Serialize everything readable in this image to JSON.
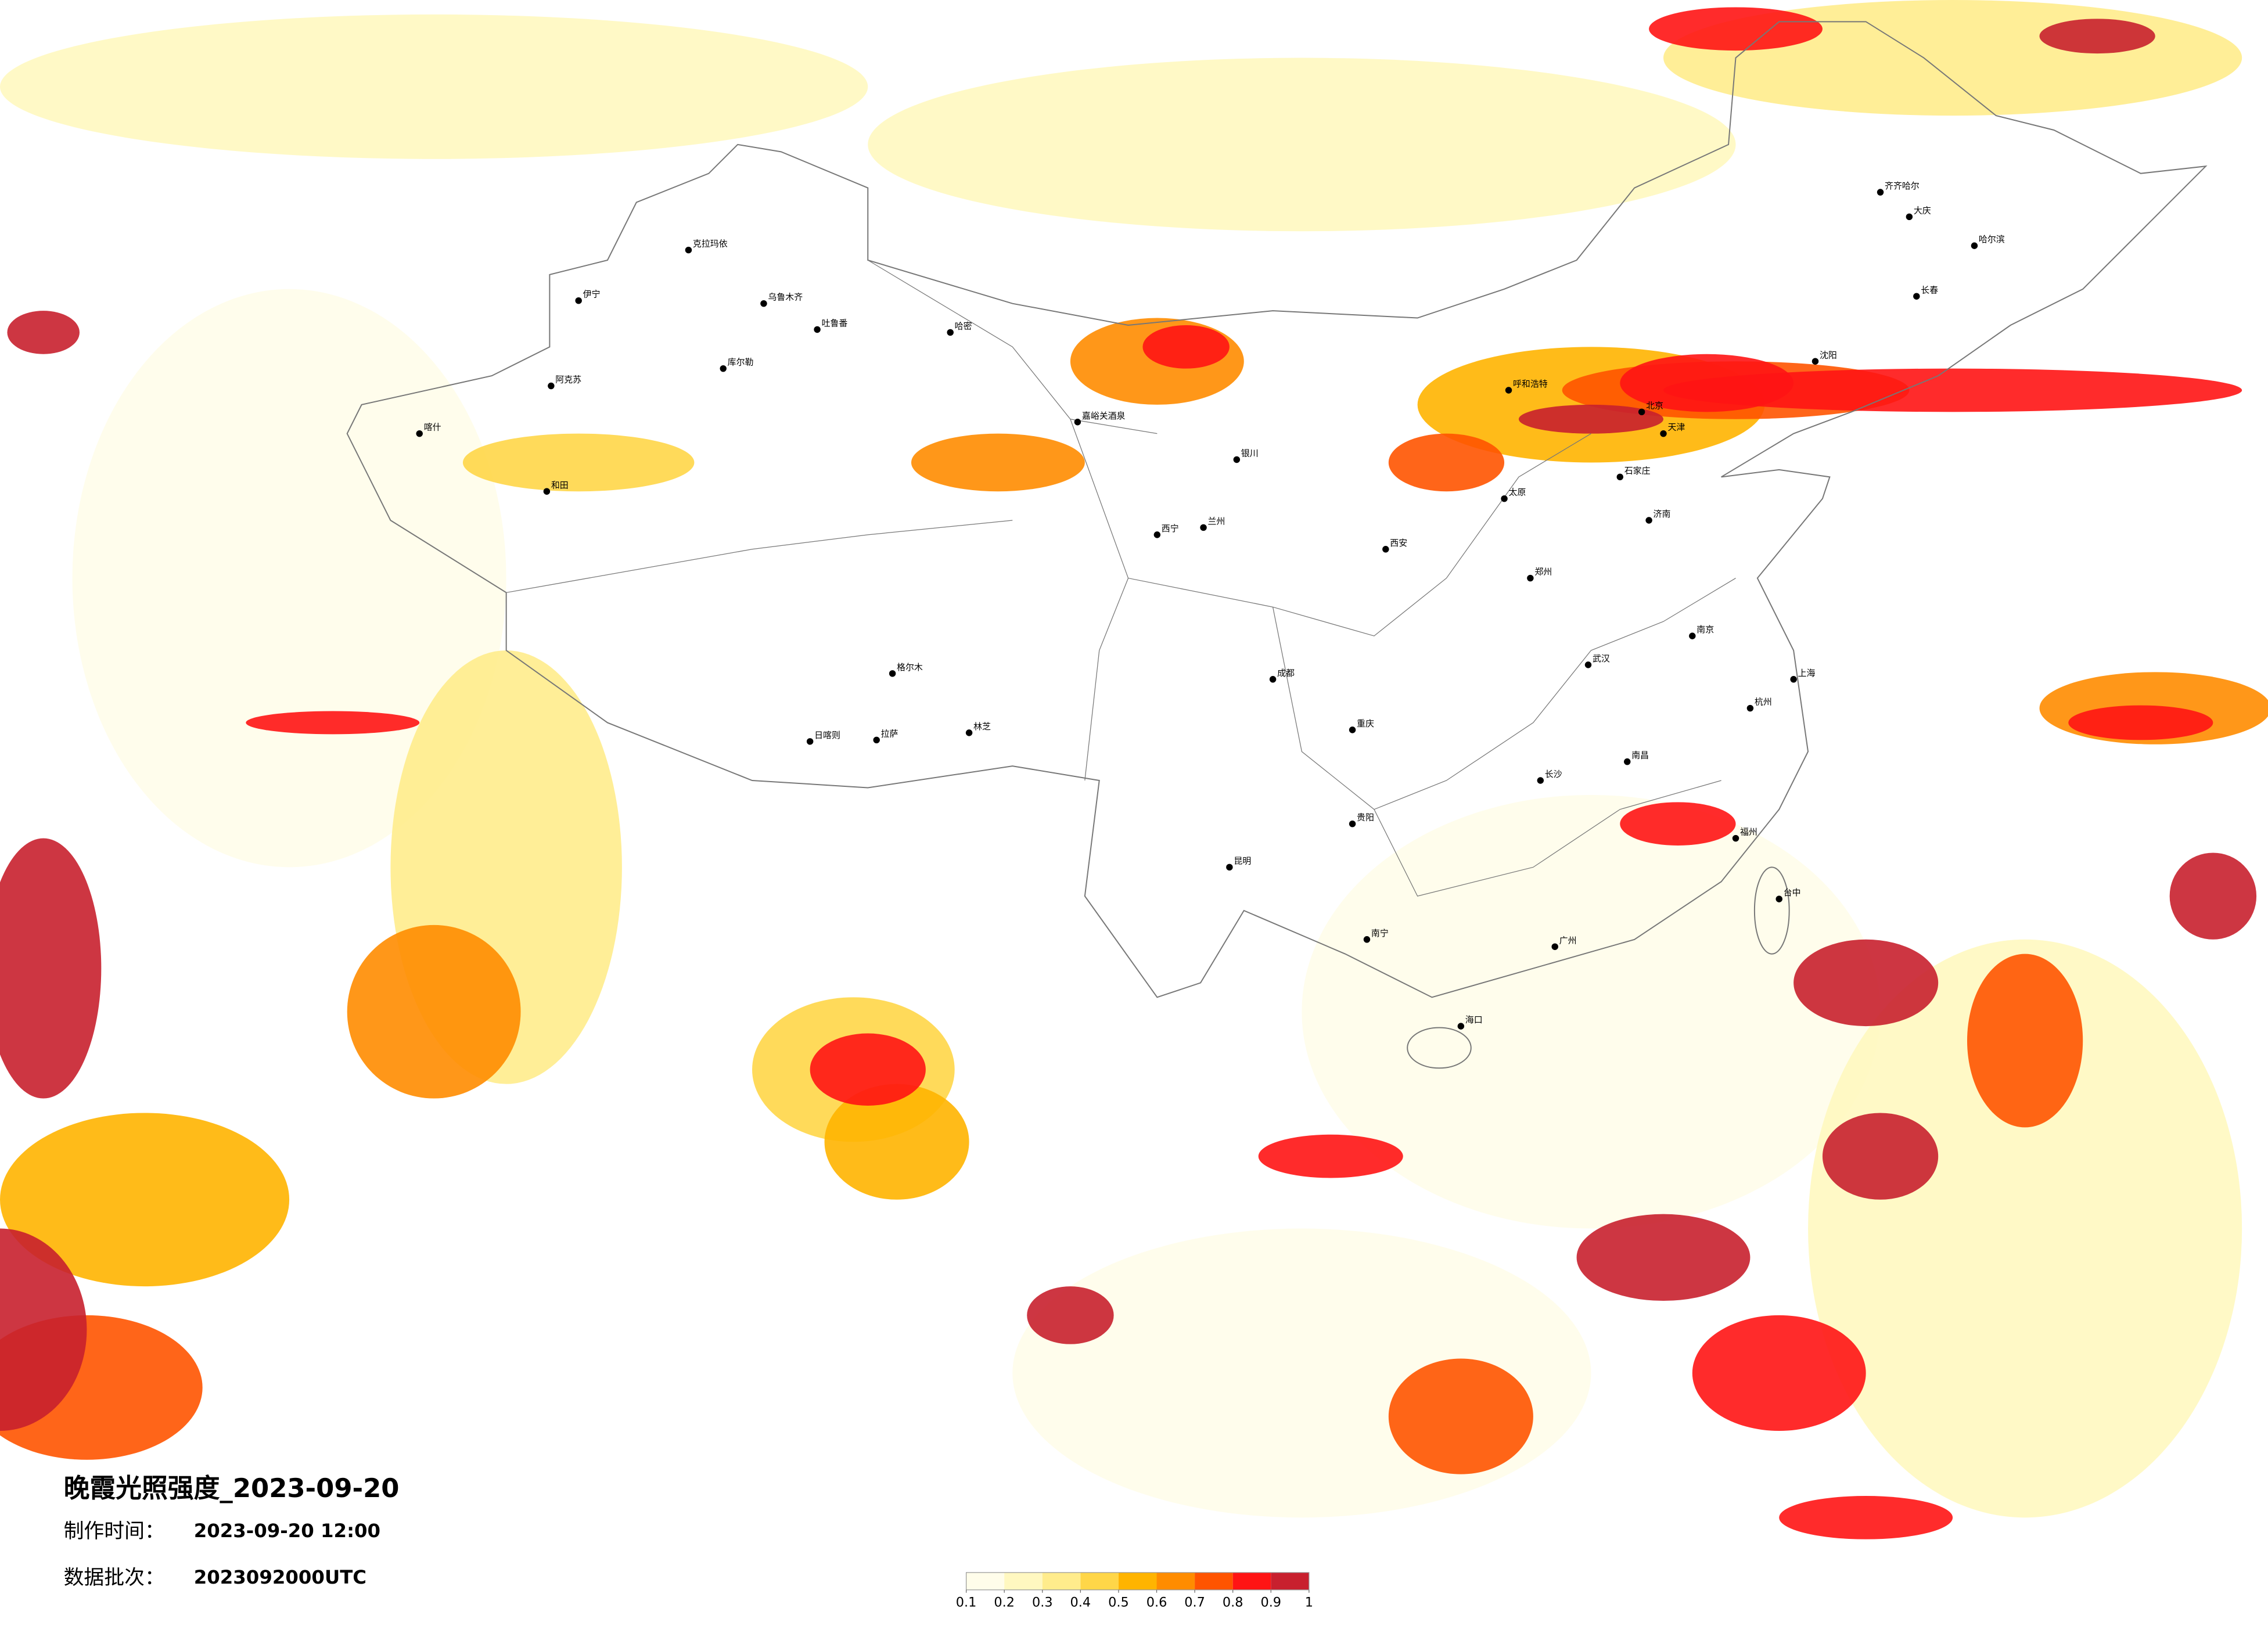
{
  "title": "晚霞光照强度_2023-09-20",
  "info": [
    {
      "label": "制作时间：",
      "value": "2023-09-20 12:00"
    },
    {
      "label": "数据批次：",
      "value": "2023092000UTC"
    }
  ],
  "legend": {
    "ticks": [
      0.1,
      0.2,
      0.3,
      0.4,
      0.5,
      0.6,
      0.7,
      0.8,
      0.9,
      1
    ],
    "colors": [
      "#fffdea",
      "#fff8c0",
      "#ffec8c",
      "#ffd648",
      "#ffb400",
      "#ff8c00",
      "#ff5400",
      "#ff1414",
      "#c8202e"
    ]
  },
  "cities": [
    "克拉玛依",
    "乌鲁木齐",
    "吐鲁番",
    "哈密",
    "伊宁",
    "库尔勒",
    "阿克苏",
    "喀什",
    "和田",
    "嘉峪关酒泉",
    "格尔木",
    "日喀则",
    "拉萨",
    "林芝",
    "西宁",
    "兰州",
    "银川",
    "呼和浩特",
    "北京",
    "天津",
    "石家庄",
    "太原",
    "济南",
    "郑州",
    "西安",
    "成都",
    "重庆",
    "贵阳",
    "昆明",
    "南宁",
    "广州",
    "长沙",
    "武汉",
    "南昌",
    "福州",
    "杭州",
    "南京",
    "上海",
    "沈阳",
    "长春",
    "哈尔滨",
    "齐齐哈尔",
    "大庆",
    "海口",
    "台中"
  ]
}
